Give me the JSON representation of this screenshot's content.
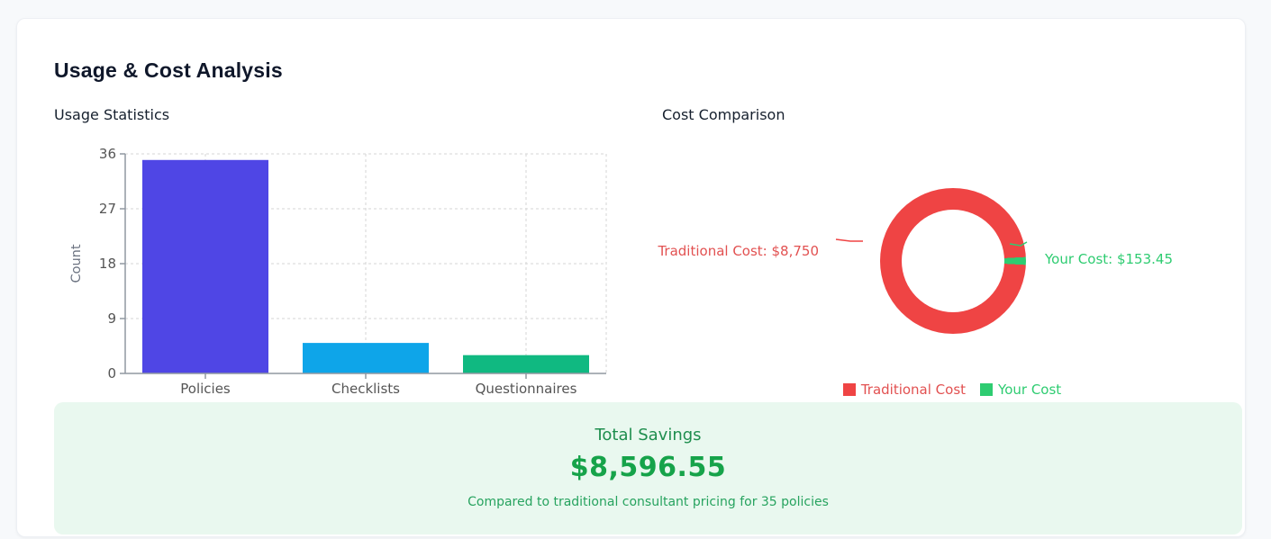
{
  "card": {
    "title": "Usage & Cost Analysis"
  },
  "savings": {
    "title": "Total Savings",
    "amount": "$8,596.55",
    "subtitle": "Compared to traditional consultant pricing for 35 policies"
  },
  "theme": {
    "page_bg": "#f7f9fb",
    "card_bg": "#ffffff",
    "banner_bg": "#e9f8ef",
    "savings_green": "#16a34a",
    "axis_color": "#9098a1",
    "grid_color": "#d6d6d6",
    "tick_label_color": "#555555",
    "axis_title_color": "#6b7280"
  },
  "chart_data": [
    {
      "type": "bar",
      "title": "Usage Statistics",
      "categories": [
        "Policies",
        "Checklists",
        "Questionnaires"
      ],
      "values": [
        35,
        5,
        3
      ],
      "colors": [
        "#4f46e5",
        "#0ea5e9",
        "#10b981"
      ],
      "xlabel": "",
      "ylabel": "Count",
      "ylim": [
        0,
        36
      ],
      "yticks": [
        0,
        9,
        18,
        27,
        36
      ],
      "grid": true,
      "grid_style": "dashed",
      "legend_position": "none"
    },
    {
      "type": "pie",
      "donut": true,
      "title": "Cost Comparison",
      "labels": [
        "Traditional Cost",
        "Your Cost"
      ],
      "values": [
        8750,
        153.45
      ],
      "colors": [
        "#ef4444",
        "#2ecc71"
      ],
      "slice_labels": [
        "Traditional Cost: $8,750",
        "Your Cost: $153.45"
      ],
      "legend_position": "bottom"
    }
  ]
}
